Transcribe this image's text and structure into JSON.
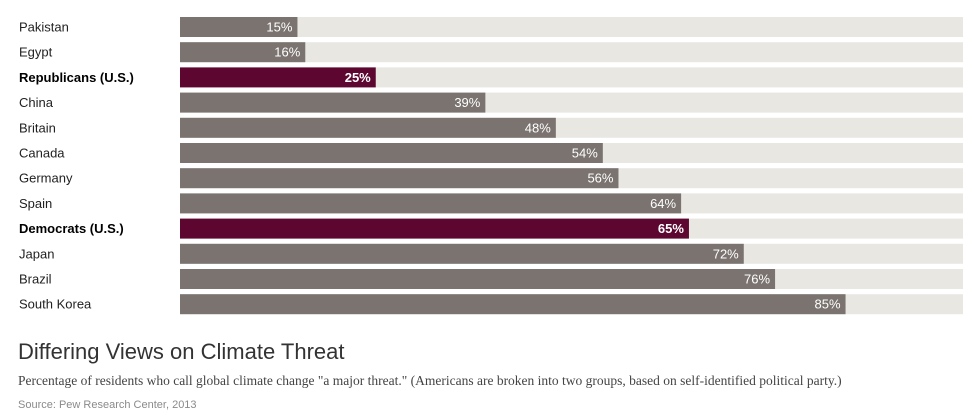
{
  "chart_data": {
    "type": "bar",
    "orientation": "horizontal",
    "title": "Differing Views on Climate Threat",
    "subtitle": "Percentage of residents who call global climate change \"a major threat.\" (Americans are broken into two groups, based on self-identified political party.)",
    "source": "Source: Pew Research Center, 2013",
    "categories": [
      "Pakistan",
      "Egypt",
      "Republicans (U.S.)",
      "China",
      "Britain",
      "Canada",
      "Germany",
      "Spain",
      "Democrats (U.S.)",
      "Japan",
      "Brazil",
      "South Korea"
    ],
    "values": [
      15,
      16,
      25,
      39,
      48,
      54,
      56,
      64,
      65,
      72,
      76,
      85
    ],
    "value_labels": [
      "15%",
      "16%",
      "25%",
      "39%",
      "48%",
      "54%",
      "56%",
      "64%",
      "65%",
      "72%",
      "76%",
      "85%"
    ],
    "highlighted": [
      false,
      false,
      true,
      false,
      false,
      false,
      false,
      false,
      true,
      false,
      false,
      false
    ],
    "xlim": [
      0,
      100
    ],
    "grid": false,
    "legend": "none",
    "colors": {
      "bar": "#7a7370",
      "bar_highlight": "#5c0630",
      "track": "#e9e7e2"
    }
  }
}
